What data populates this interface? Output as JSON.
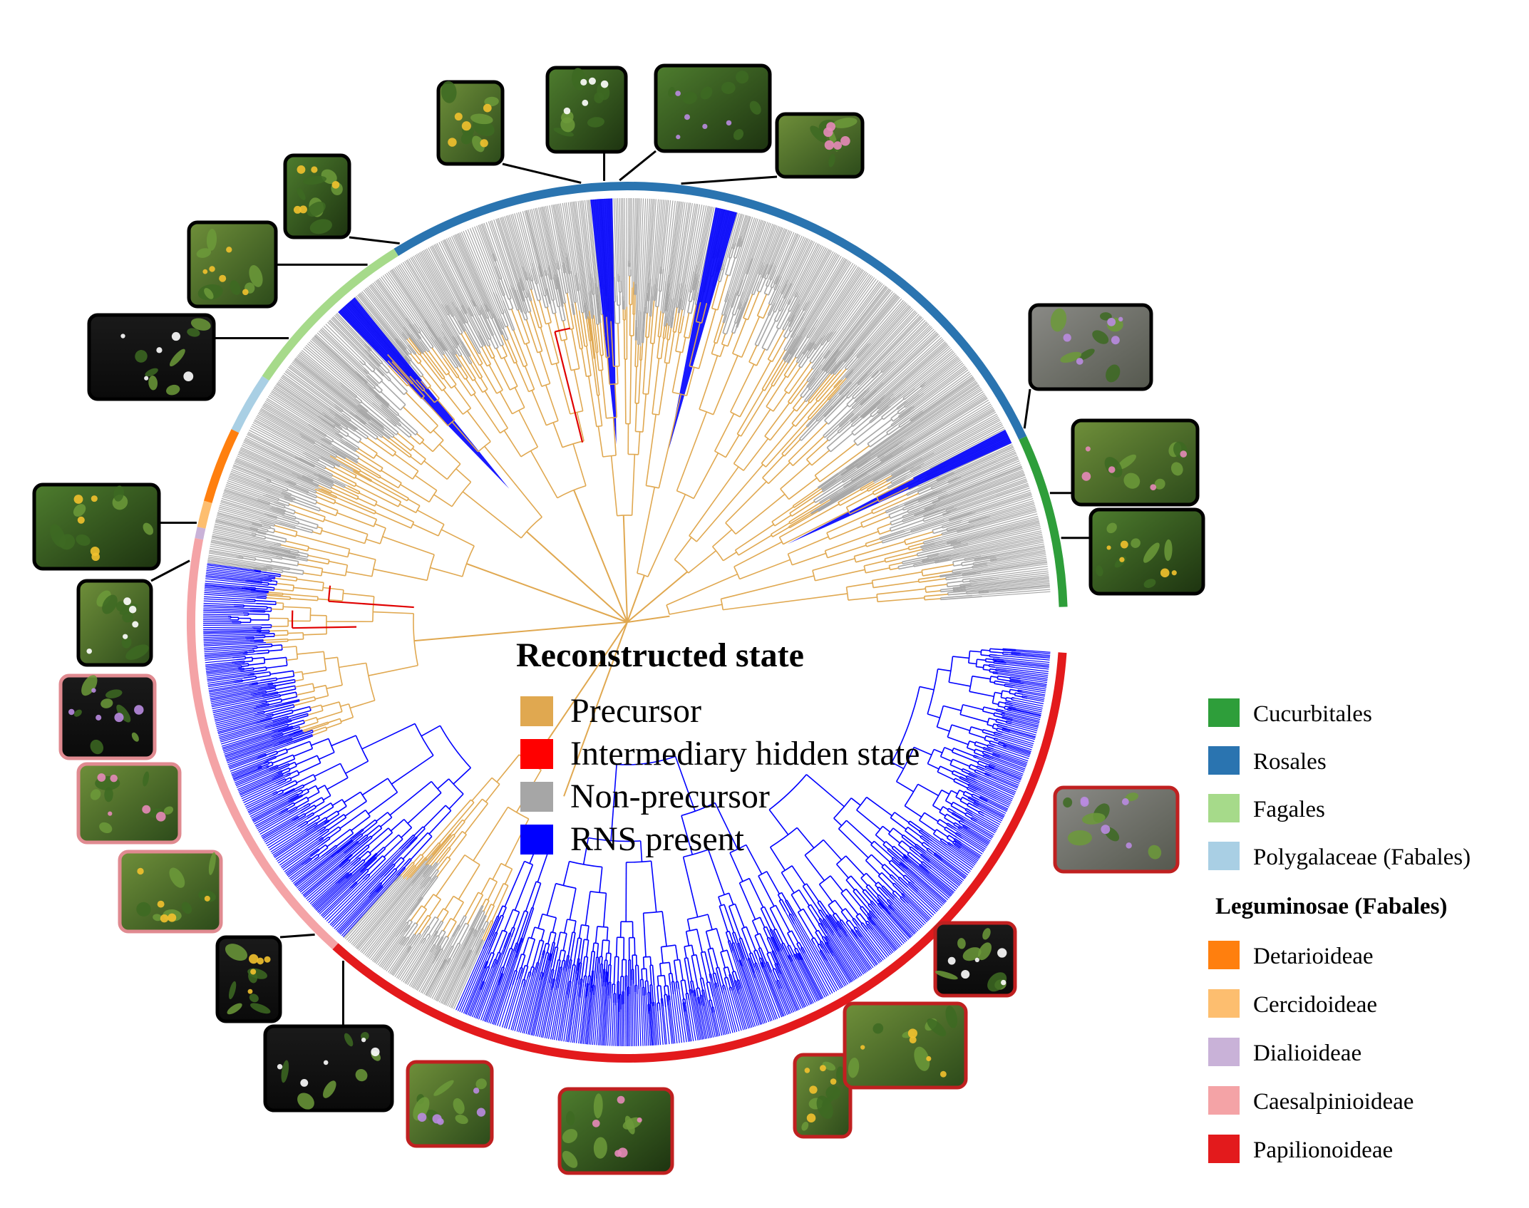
{
  "reconstructed_legend": {
    "title": "Reconstructed state",
    "items": [
      {
        "label": "Precursor",
        "color": "#E0A850"
      },
      {
        "label": "Intermediary hidden state",
        "color": "#FF0000"
      },
      {
        "label": "Non-precursor",
        "color": "#A6A6A6"
      },
      {
        "label": "RNS present",
        "color": "#0000FF"
      }
    ]
  },
  "clade_legend": {
    "group_heading": "Leguminosae (Fabales)",
    "orders": [
      {
        "label": "Cucurbitales",
        "color": "#2E9E3A"
      },
      {
        "label": "Rosales",
        "color": "#2A74B0"
      },
      {
        "label": "Fagales",
        "color": "#A6DA8A"
      },
      {
        "label": "Polygalaceae (Fabales)",
        "color": "#A9CFE4"
      }
    ],
    "subfamilies": [
      {
        "label": "Detarioideae",
        "color": "#FF7F0E"
      },
      {
        "label": "Cercidoideae",
        "color": "#FDBE6F"
      },
      {
        "label": "Dialioideae",
        "color": "#C9B2D8"
      },
      {
        "label": "Caesalpinioideae",
        "color": "#F4A3A6"
      },
      {
        "label": "Papilionoideae",
        "color": "#E31A1C"
      }
    ]
  },
  "icons": {
    "photo": "plant-photo-icon"
  }
}
